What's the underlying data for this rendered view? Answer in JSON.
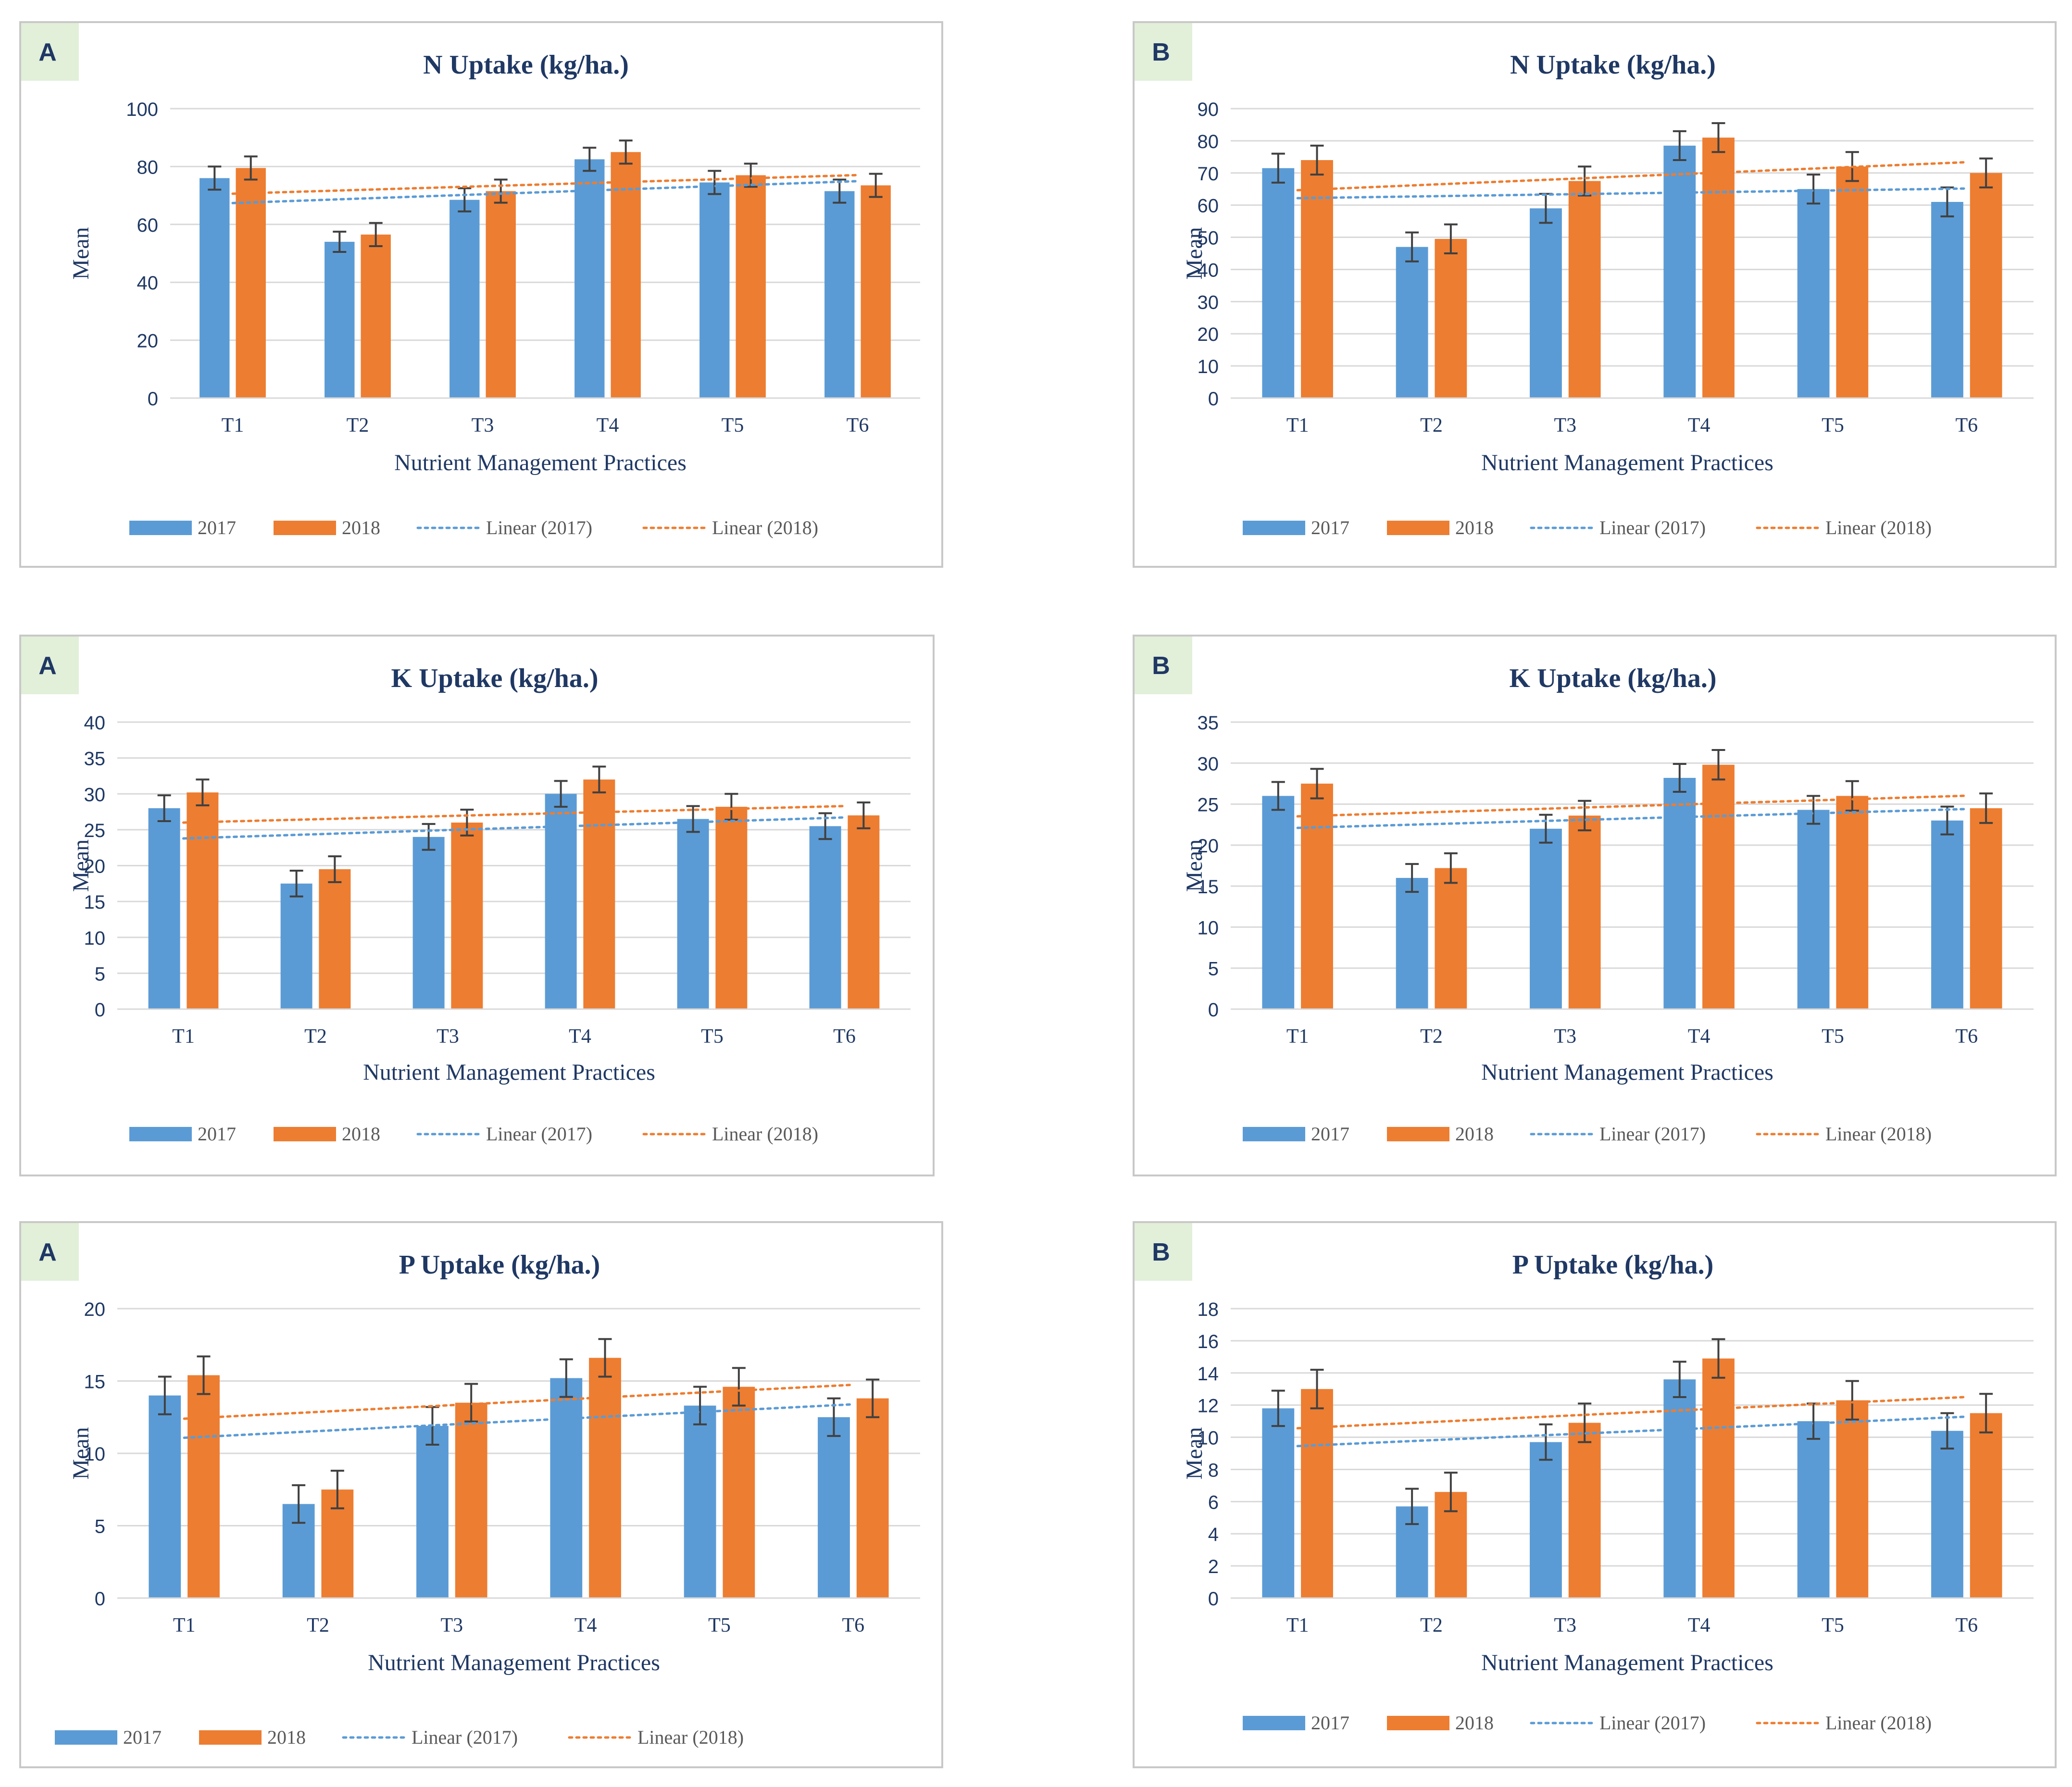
{
  "chart_data": [
    {
      "type": "bar",
      "panel_label": "A",
      "title": "N Uptake (kg/ha.)",
      "xlabel": "Nutrient Management Practices",
      "ylabel": "Mean",
      "categories": [
        "T1",
        "T2",
        "T3",
        "T4",
        "T5",
        "T6"
      ],
      "ylim": [
        0,
        100
      ],
      "yticks": [
        0,
        20,
        40,
        60,
        80,
        100
      ],
      "series": [
        {
          "name": "2017",
          "values": [
            76,
            54,
            68.5,
            82.5,
            74.5,
            71.5
          ],
          "error": [
            4,
            3.5,
            4,
            4,
            4,
            4
          ]
        },
        {
          "name": "2018",
          "values": [
            79.5,
            56.5,
            71.5,
            85,
            77,
            73.5
          ],
          "error": [
            4,
            4,
            4,
            4,
            4,
            4
          ]
        }
      ],
      "trendlines": [
        {
          "name": "Linear (2017)",
          "series": "2017"
        },
        {
          "name": "Linear (2018)",
          "series": "2018"
        }
      ],
      "legend_position": "bottom",
      "grid": true
    },
    {
      "type": "bar",
      "panel_label": "B",
      "title": "N Uptake (kg/ha.)",
      "xlabel": "Nutrient Management Practices",
      "ylabel": "Mean",
      "categories": [
        "T1",
        "T2",
        "T3",
        "T4",
        "T5",
        "T6"
      ],
      "ylim": [
        0,
        90
      ],
      "yticks": [
        0,
        10,
        20,
        30,
        40,
        50,
        60,
        70,
        80,
        90
      ],
      "series": [
        {
          "name": "2017",
          "values": [
            71.5,
            47,
            59,
            78.5,
            65,
            61
          ],
          "error": [
            4.5,
            4.5,
            4.5,
            4.5,
            4.5,
            4.5
          ]
        },
        {
          "name": "2018",
          "values": [
            74,
            49.5,
            67.5,
            81,
            72,
            70
          ],
          "error": [
            4.5,
            4.5,
            4.5,
            4.5,
            4.5,
            4.5
          ]
        }
      ],
      "trendlines": [
        {
          "name": "Linear (2017)",
          "series": "2017"
        },
        {
          "name": "Linear (2018)",
          "series": "2018"
        }
      ],
      "legend_position": "bottom",
      "grid": true
    },
    {
      "type": "bar",
      "panel_label": "A",
      "title": "K Uptake (kg/ha.)",
      "xlabel": "Nutrient Management Practices",
      "ylabel": "Mean",
      "categories": [
        "T1",
        "T2",
        "T3",
        "T4",
        "T5",
        "T6"
      ],
      "ylim": [
        0,
        40
      ],
      "yticks": [
        0,
        5,
        10,
        15,
        20,
        25,
        30,
        35,
        40
      ],
      "series": [
        {
          "name": "2017",
          "values": [
            28,
            17.5,
            24,
            30,
            26.5,
            25.5
          ],
          "error": [
            1.8,
            1.8,
            1.8,
            1.8,
            1.8,
            1.8
          ]
        },
        {
          "name": "2018",
          "values": [
            30.2,
            19.5,
            26,
            32,
            28.2,
            27
          ],
          "error": [
            1.8,
            1.8,
            1.8,
            1.8,
            1.8,
            1.8
          ]
        }
      ],
      "trendlines": [
        {
          "name": "Linear (2017)",
          "series": "2017"
        },
        {
          "name": "Linear (2018)",
          "series": "2018"
        }
      ],
      "legend_position": "bottom",
      "grid": true
    },
    {
      "type": "bar",
      "panel_label": "B",
      "title": "K Uptake (kg/ha.)",
      "xlabel": "Nutrient Management Practices",
      "ylabel": "Mean",
      "categories": [
        "T1",
        "T2",
        "T3",
        "T4",
        "T5",
        "T6"
      ],
      "ylim": [
        0,
        35
      ],
      "yticks": [
        0,
        5,
        10,
        15,
        20,
        25,
        30,
        35
      ],
      "series": [
        {
          "name": "2017",
          "values": [
            26,
            16,
            22,
            28.2,
            24.3,
            23
          ],
          "error": [
            1.7,
            1.7,
            1.7,
            1.7,
            1.7,
            1.7
          ]
        },
        {
          "name": "2018",
          "values": [
            27.5,
            17.2,
            23.6,
            29.8,
            26,
            24.5
          ],
          "error": [
            1.8,
            1.8,
            1.8,
            1.8,
            1.8,
            1.8
          ]
        }
      ],
      "trendlines": [
        {
          "name": "Linear (2017)",
          "series": "2017"
        },
        {
          "name": "Linear (2018)",
          "series": "2018"
        }
      ],
      "legend_position": "bottom",
      "grid": true
    },
    {
      "type": "bar",
      "panel_label": "A",
      "title": "P Uptake (kg/ha.)",
      "xlabel": "Nutrient Management Practices",
      "ylabel": "Mean",
      "categories": [
        "T1",
        "T2",
        "T3",
        "T4",
        "T5",
        "T6"
      ],
      "ylim": [
        0,
        20
      ],
      "yticks": [
        0,
        5,
        10,
        15,
        20
      ],
      "series": [
        {
          "name": "2017",
          "values": [
            14,
            6.5,
            11.9,
            15.2,
            13.3,
            12.5
          ],
          "error": [
            1.3,
            1.3,
            1.3,
            1.3,
            1.3,
            1.3
          ]
        },
        {
          "name": "2018",
          "values": [
            15.4,
            7.5,
            13.5,
            16.6,
            14.6,
            13.8
          ],
          "error": [
            1.3,
            1.3,
            1.3,
            1.3,
            1.3,
            1.3
          ]
        }
      ],
      "trendlines": [
        {
          "name": "Linear (2017)",
          "series": "2017"
        },
        {
          "name": "Linear (2018)",
          "series": "2018"
        }
      ],
      "legend_position": "bottom",
      "grid": true
    },
    {
      "type": "bar",
      "panel_label": "B",
      "title": "P Uptake (kg/ha.)",
      "xlabel": "Nutrient Management Practices",
      "ylabel": "Mean",
      "categories": [
        "T1",
        "T2",
        "T3",
        "T4",
        "T5",
        "T6"
      ],
      "ylim": [
        0,
        18
      ],
      "yticks": [
        0,
        2,
        4,
        6,
        8,
        10,
        12,
        14,
        16,
        18
      ],
      "series": [
        {
          "name": "2017",
          "values": [
            11.8,
            5.7,
            9.7,
            13.6,
            11,
            10.4
          ],
          "error": [
            1.1,
            1.1,
            1.1,
            1.1,
            1.1,
            1.1
          ]
        },
        {
          "name": "2018",
          "values": [
            13,
            6.6,
            10.9,
            14.9,
            12.3,
            11.5
          ],
          "error": [
            1.2,
            1.2,
            1.2,
            1.2,
            1.2,
            1.2
          ]
        }
      ],
      "trendlines": [
        {
          "name": "Linear (2017)",
          "series": "2017"
        },
        {
          "name": "Linear (2018)",
          "series": "2018"
        }
      ],
      "legend_position": "bottom",
      "grid": true
    }
  ],
  "colors": {
    "series_2017": "#5b9bd5",
    "series_2018": "#ed7d31",
    "title": "#1f3864",
    "axis_text": "#1f3864",
    "grid": "#d9d9d9",
    "error_bar": "#404040",
    "badge_bg": "#e2efd9",
    "legend_text": "#595959"
  }
}
